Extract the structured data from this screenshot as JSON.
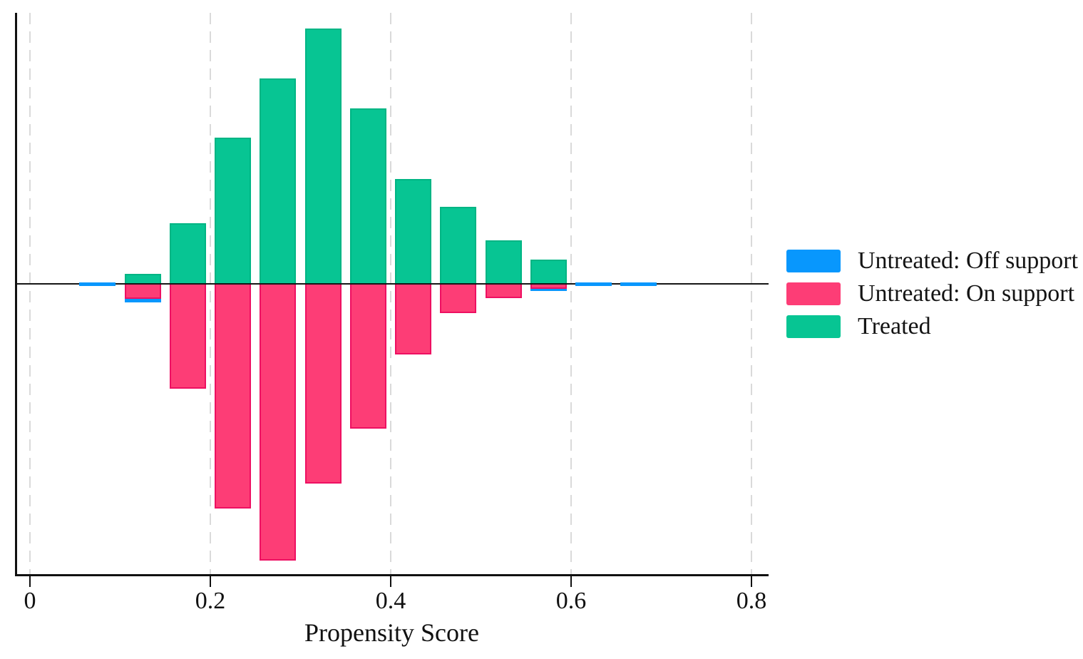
{
  "chart_data": {
    "type": "bar",
    "subtype": "diverging-histogram",
    "title": "",
    "xlabel": "Propensity Score",
    "ylabel": "",
    "xlim": [
      -0.017,
      0.82
    ],
    "bin_width": 0.05,
    "grid": "vertical-dashed",
    "legend_position": "right",
    "x_ticks": [
      {
        "value": 0,
        "label": "0"
      },
      {
        "value": 0.2,
        "label": "0.2"
      },
      {
        "value": 0.4,
        "label": "0.4"
      },
      {
        "value": 0.6,
        "label": "0.6"
      },
      {
        "value": 0.8,
        "label": "0.8"
      }
    ],
    "note": "No y-axis shown; heights are relative frequencies measured in display pixels. Treated drawn upward, Untreated drawn downward (off-support stacked beneath on-support).",
    "bins": [
      {
        "center": 0.075,
        "treated": 0,
        "untreated_on": 0,
        "untreated_off": 5
      },
      {
        "center": 0.125,
        "treated": 14,
        "untreated_on": 21,
        "untreated_off": 5
      },
      {
        "center": 0.175,
        "treated": 85,
        "untreated_on": 147,
        "untreated_off": 0
      },
      {
        "center": 0.225,
        "treated": 205,
        "untreated_on": 315,
        "untreated_off": 0
      },
      {
        "center": 0.275,
        "treated": 288,
        "untreated_on": 388,
        "untreated_off": 0
      },
      {
        "center": 0.325,
        "treated": 358,
        "untreated_on": 280,
        "untreated_off": 0
      },
      {
        "center": 0.375,
        "treated": 246,
        "untreated_on": 203,
        "untreated_off": 0
      },
      {
        "center": 0.425,
        "treated": 147,
        "untreated_on": 99,
        "untreated_off": 0
      },
      {
        "center": 0.475,
        "treated": 108,
        "untreated_on": 41,
        "untreated_off": 0
      },
      {
        "center": 0.525,
        "treated": 61,
        "untreated_on": 20,
        "untreated_off": 0
      },
      {
        "center": 0.575,
        "treated": 34,
        "untreated_on": 7,
        "untreated_off": 3
      },
      {
        "center": 0.625,
        "treated": 0,
        "untreated_on": 0,
        "untreated_off": 5
      },
      {
        "center": 0.675,
        "treated": 0,
        "untreated_on": 0,
        "untreated_off": 5
      }
    ]
  },
  "legend": {
    "items": [
      {
        "label": "Untreated: Off support",
        "series": "untreated_off",
        "color": "#0897fd"
      },
      {
        "label": "Untreated: On support",
        "series": "untreated_on",
        "color": "#fd3d76"
      },
      {
        "label": "Treated",
        "series": "treated",
        "color": "#07c593"
      }
    ]
  },
  "colors": {
    "treated_fill": "#07c593",
    "treated_border": "#00b584",
    "untreated_on_fill": "#fd3d76",
    "untreated_on_border": "#ee1062",
    "untreated_off_fill": "#0897fd",
    "axis": "#111111",
    "gridline": "#dadada",
    "background": "#ffffff"
  }
}
